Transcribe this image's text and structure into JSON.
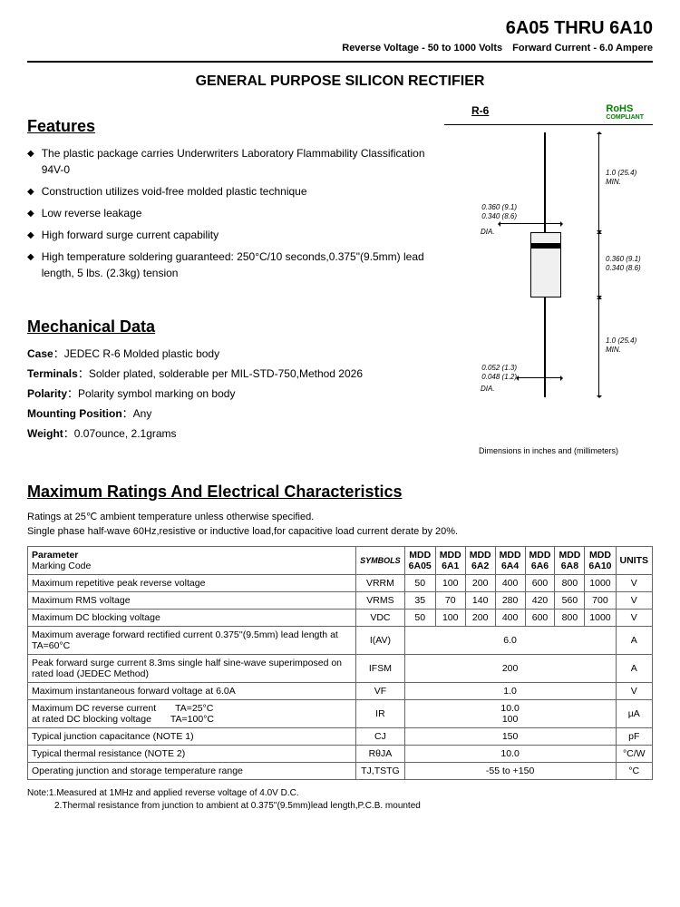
{
  "header": {
    "title": "6A05 THRU 6A10",
    "subtitle": "Reverse Voltage - 50 to 1000 Volts Forward Current - 6.0 Ampere"
  },
  "main_title": "GENERAL PURPOSE SILICON RECTIFIER",
  "features": {
    "heading": "Features",
    "items": [
      "The plastic package carries Underwriters Laboratory Flammability Classification 94V-0",
      "Construction utilizes void-free molded plastic technique",
      "Low reverse leakage",
      "High forward surge current capability",
      "High temperature soldering guaranteed: 250°C/10 seconds,0.375\"(9.5mm) lead length, 5 lbs. (2.3kg) tension"
    ]
  },
  "package": {
    "label": "R-6",
    "rohs": "RoHS",
    "rohs_sub": "COMPLIANT",
    "dims": {
      "lead_len": "1.0 (25.4) MIN.",
      "lead_dia": "0.052 (1.3) 0.048 (1.2)",
      "body_dia": "0.360 (9.1) 0.340 (8.6)",
      "body_len": "0.360 (9.1) 0.340 (8.6)",
      "dia_label": "DIA."
    },
    "caption": "Dimensions in inches and (millimeters)"
  },
  "mechanical": {
    "heading": "Mechanical Data",
    "case_label": "Case",
    "case_val": "JEDEC R-6 Molded plastic body",
    "terminals_label": "Terminals",
    "terminals_val": "Solder plated, solderable per MIL-STD-750,Method 2026",
    "polarity_label": "Polarity",
    "polarity_val": "Polarity symbol  marking on body",
    "mounting_label": "Mounting Position",
    "mounting_val": "Any",
    "weight_label": "Weight",
    "weight_val": "0.07ounce, 2.1grams"
  },
  "ratings": {
    "heading": "Maximum Ratings And Electrical Characteristics",
    "note1": "Ratings at 25℃ ambient temperature unless otherwise specified.",
    "note2": "Single phase half-wave 60Hz,resistive or inductive load,for capacitive load current derate by 20%.",
    "columns": [
      "Parameter",
      "SYMBOLS",
      "MDD 6A05",
      "MDD 6A1",
      "MDD 6A2",
      "MDD 6A4",
      "MDD 6A6",
      "MDD 6A8",
      "MDD 6A10",
      "UNITS"
    ],
    "marking_label": "Marking Code",
    "rows": [
      {
        "param": "Maximum repetitive peak reverse voltage",
        "sym": "VRRM",
        "vals": [
          "50",
          "100",
          "200",
          "400",
          "600",
          "800",
          "1000"
        ],
        "unit": "V"
      },
      {
        "param": "Maximum RMS voltage",
        "sym": "VRMS",
        "vals": [
          "35",
          "70",
          "140",
          "280",
          "420",
          "560",
          "700"
        ],
        "unit": "V"
      },
      {
        "param": "Maximum DC blocking voltage",
        "sym": "VDC",
        "vals": [
          "50",
          "100",
          "200",
          "400",
          "600",
          "800",
          "1000"
        ],
        "unit": "V"
      },
      {
        "param": "Maximum average forward rectified current 0.375''(9.5mm) lead length at TA=60°C",
        "sym": "I(AV)",
        "span": "6.0",
        "unit": "A"
      },
      {
        "param": "Peak forward surge current 8.3ms single half sine-wave superimposed on rated load (JEDEC Method)",
        "sym": "IFSM",
        "span": "200",
        "unit": "A"
      },
      {
        "param": "Maximum instantaneous forward voltage at 6.0A",
        "sym": "VF",
        "span": "1.0",
        "unit": "V"
      },
      {
        "param": "Maximum DC reverse current  TA=25°C\nat rated DC blocking voltage  TA=100°C",
        "sym": "IR",
        "span": "10.0\n100",
        "unit": "µA"
      },
      {
        "param": "Typical junction capacitance (NOTE 1)",
        "sym": "CJ",
        "span": "150",
        "unit": "pF"
      },
      {
        "param": "Typical thermal resistance (NOTE 2)",
        "sym": "RθJA",
        "span": "10.0",
        "unit": "°C/W"
      },
      {
        "param": "Operating junction and storage temperature range",
        "sym": "TJ,TSTG",
        "span": "-55 to +150",
        "unit": "°C"
      }
    ]
  },
  "footnote": "Note:1.Measured at 1MHz and applied reverse voltage of 4.0V D.C.\n   2.Thermal resistance from junction to ambient  at 0.375''(9.5mm)lead length,P.C.B. mounted"
}
